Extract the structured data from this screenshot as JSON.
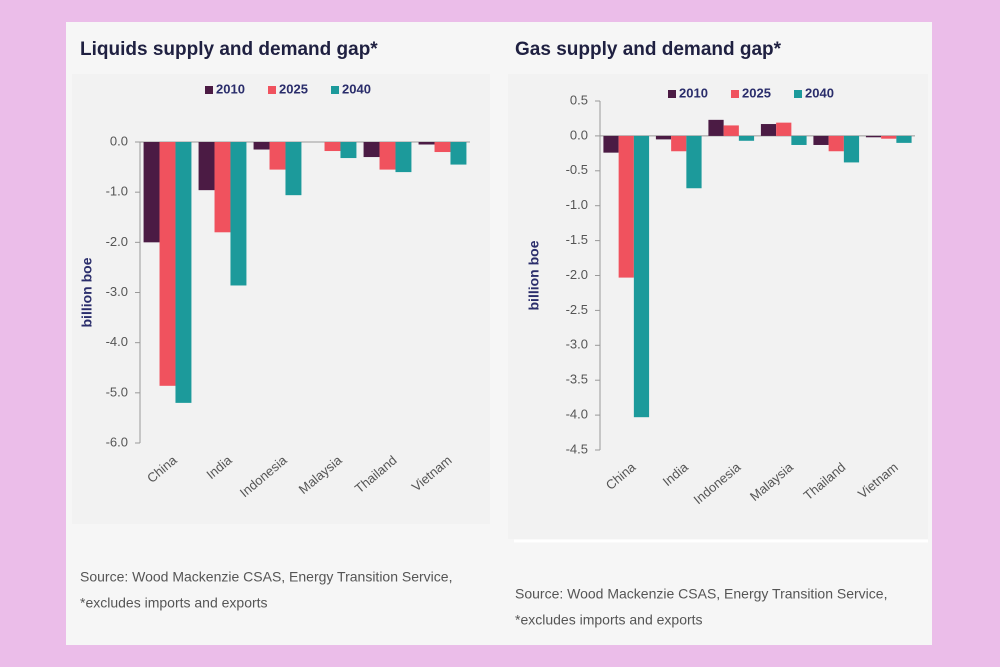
{
  "chart_data": [
    {
      "type": "bar",
      "title": "Liquids supply and demand gap*",
      "y_label": "billion boe",
      "categories": [
        "China",
        "India",
        "Indonesia",
        "Malaysia",
        "Thailand",
        "Vietnam"
      ],
      "series": [
        {
          "name": "2010",
          "color": "#4b1b44",
          "values": [
            -2.0,
            -0.96,
            -0.15,
            0,
            -0.3,
            -0.05
          ]
        },
        {
          "name": "2025",
          "color": "#f0525e",
          "values": [
            -4.86,
            -1.8,
            -0.55,
            -0.18,
            -0.55,
            -0.2
          ]
        },
        {
          "name": "2040",
          "color": "#1c9a9b",
          "values": [
            -5.2,
            -2.86,
            -1.06,
            -0.32,
            -0.6,
            -0.45
          ]
        }
      ],
      "ylim": [
        -6,
        0
      ],
      "yticks": [
        {
          "value": 0,
          "label": "0.0"
        },
        {
          "value": -1,
          "label": "-1.0"
        },
        {
          "value": -2,
          "label": "-2.0"
        },
        {
          "value": -3,
          "label": "-3.0"
        },
        {
          "value": -4,
          "label": "-4.0"
        },
        {
          "value": -5,
          "label": "-5.0"
        },
        {
          "value": -6,
          "label": "-6.0"
        }
      ],
      "source": "Source: Wood Mackenzie CSAS, Energy Transition Service,",
      "note": "*excludes imports and exports"
    },
    {
      "type": "bar",
      "title": "Gas supply and demand gap*",
      "y_label": "billion boe",
      "categories": [
        "China",
        "India",
        "Indonesia",
        "Malaysia",
        "Thailand",
        "Vietnam"
      ],
      "series": [
        {
          "name": "2010",
          "color": "#4b1b44",
          "values": [
            -0.24,
            -0.05,
            0.23,
            0.17,
            -0.13,
            -0.02
          ]
        },
        {
          "name": "2025",
          "color": "#f0525e",
          "values": [
            -2.03,
            -0.22,
            0.15,
            0.19,
            -0.22,
            -0.04
          ]
        },
        {
          "name": "2040",
          "color": "#1c9a9b",
          "values": [
            -4.03,
            -0.75,
            -0.07,
            -0.13,
            -0.38,
            -0.1
          ]
        }
      ],
      "ylim": [
        -4.5,
        0.5
      ],
      "yticks": [
        0.5,
        {
          "value": 0,
          "label": "0.0"
        },
        -0.5,
        {
          "value": -1,
          "label": "-1.0"
        },
        -1.5,
        {
          "value": -2,
          "label": "-2.0"
        },
        -2.5,
        {
          "value": -3,
          "label": "-3.0"
        },
        -3.5,
        {
          "value": -4,
          "label": "-4.0"
        },
        -4.5
      ],
      "source": "Source: Wood Mackenzie CSAS, Energy Transition Service,",
      "note": "*excludes imports and exports"
    }
  ]
}
